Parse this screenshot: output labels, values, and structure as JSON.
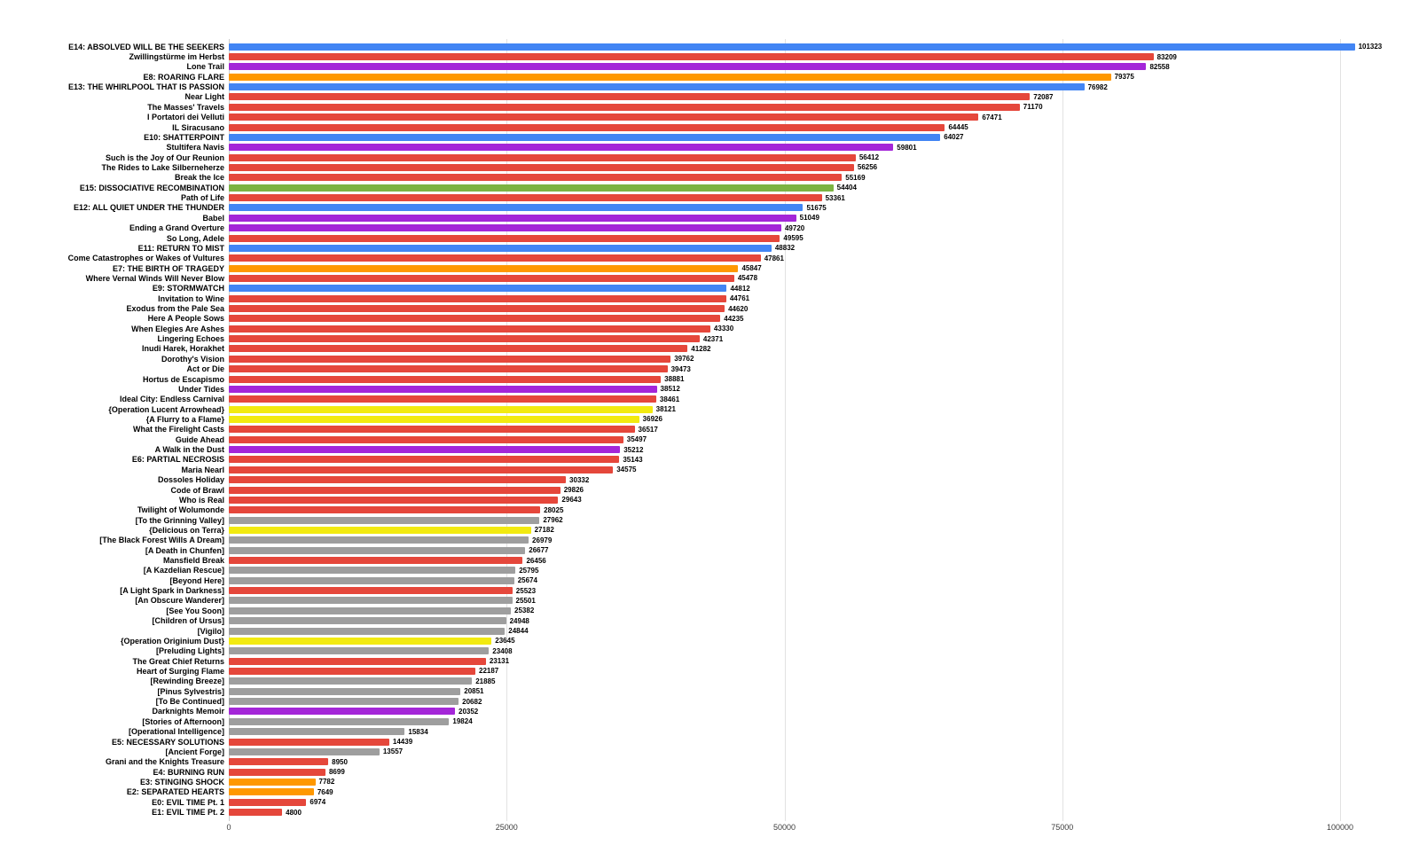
{
  "chart_data": {
    "type": "bar",
    "orientation": "horizontal",
    "title": "",
    "xlabel": "",
    "ylabel": "",
    "grid": true,
    "legend": "none",
    "x_axis": {
      "ticks": [
        0,
        25000,
        50000,
        75000,
        100000
      ],
      "max": 100000
    },
    "colors": {
      "blue": "#4285F4",
      "red": "#E5473B",
      "purple": "#A426D8",
      "orange": "#FF9800",
      "green": "#7CB342",
      "yellow": "#F2EA10",
      "gray": "#9E9E9E"
    },
    "bars": [
      {
        "label": "E14: ABSOLVED WILL BE THE SEEKERS",
        "value": 101323,
        "color": "blue"
      },
      {
        "label": "Zwillingstürme im Herbst",
        "value": 83209,
        "color": "red"
      },
      {
        "label": "Lone Trail",
        "value": 82558,
        "color": "purple"
      },
      {
        "label": "E8: ROARING FLARE",
        "value": 79375,
        "color": "orange"
      },
      {
        "label": "E13: THE WHIRLPOOL THAT IS PASSION",
        "value": 76982,
        "color": "blue"
      },
      {
        "label": "Near Light",
        "value": 72087,
        "color": "red"
      },
      {
        "label": "The Masses' Travels",
        "value": 71170,
        "color": "red"
      },
      {
        "label": "I Portatori dei Velluti",
        "value": 67471,
        "color": "red"
      },
      {
        "label": "IL Siracusano",
        "value": 64445,
        "color": "red"
      },
      {
        "label": "E10: SHATTERPOINT",
        "value": 64027,
        "color": "blue"
      },
      {
        "label": "Stultifera Navis",
        "value": 59801,
        "color": "purple"
      },
      {
        "label": "Such is the Joy of Our Reunion",
        "value": 56412,
        "color": "red"
      },
      {
        "label": "The Rides to Lake Silberneherze",
        "value": 56256,
        "color": "red"
      },
      {
        "label": "Break the Ice",
        "value": 55169,
        "color": "red"
      },
      {
        "label": "E15: DISSOCIATIVE RECOMBINATION",
        "value": 54404,
        "color": "green"
      },
      {
        "label": "Path of Life",
        "value": 53361,
        "color": "red"
      },
      {
        "label": "E12: ALL QUIET UNDER THE THUNDER",
        "value": 51675,
        "color": "blue"
      },
      {
        "label": "Babel",
        "value": 51049,
        "color": "purple"
      },
      {
        "label": "Ending a Grand Overture",
        "value": 49720,
        "color": "purple"
      },
      {
        "label": "So Long, Adele",
        "value": 49595,
        "color": "red"
      },
      {
        "label": "E11: RETURN TO MIST",
        "value": 48832,
        "color": "blue"
      },
      {
        "label": "Come Catastrophes or Wakes of Vultures",
        "value": 47861,
        "color": "red"
      },
      {
        "label": "E7: THE BIRTH OF TRAGEDY",
        "value": 45847,
        "color": "orange"
      },
      {
        "label": "Where Vernal Winds Will Never Blow",
        "value": 45478,
        "color": "red"
      },
      {
        "label": "E9: STORMWATCH",
        "value": 44812,
        "color": "blue"
      },
      {
        "label": "Invitation to Wine",
        "value": 44761,
        "color": "red"
      },
      {
        "label": "Exodus from the Pale Sea",
        "value": 44620,
        "color": "red"
      },
      {
        "label": "Here A People Sows",
        "value": 44235,
        "color": "red"
      },
      {
        "label": "When Elegies Are Ashes",
        "value": 43330,
        "color": "red"
      },
      {
        "label": "Lingering Echoes",
        "value": 42371,
        "color": "red"
      },
      {
        "label": "Inudi Harek, Horakhet",
        "value": 41282,
        "color": "red"
      },
      {
        "label": "Dorothy's Vision",
        "value": 39762,
        "color": "red"
      },
      {
        "label": "Act or Die",
        "value": 39473,
        "color": "red"
      },
      {
        "label": "Hortus de Escapismo",
        "value": 38881,
        "color": "red"
      },
      {
        "label": "Under Tides",
        "value": 38512,
        "color": "purple"
      },
      {
        "label": "Ideal City: Endless Carnival",
        "value": 38461,
        "color": "red"
      },
      {
        "label": "{Operation Lucent Arrowhead}",
        "value": 38121,
        "color": "yellow"
      },
      {
        "label": "{A Flurry to a Flame}",
        "value": 36926,
        "color": "yellow"
      },
      {
        "label": "What the Firelight Casts",
        "value": 36517,
        "color": "red"
      },
      {
        "label": "Guide Ahead",
        "value": 35497,
        "color": "red"
      },
      {
        "label": "A Walk in the Dust",
        "value": 35212,
        "color": "purple"
      },
      {
        "label": "E6: PARTIAL NECROSIS",
        "value": 35143,
        "color": "red"
      },
      {
        "label": "Maria Nearl",
        "value": 34575,
        "color": "red"
      },
      {
        "label": "Dossoles Holiday",
        "value": 30332,
        "color": "red"
      },
      {
        "label": "Code of Brawl",
        "value": 29826,
        "color": "red"
      },
      {
        "label": "Who is Real",
        "value": 29643,
        "color": "red"
      },
      {
        "label": "Twilight of Wolumonde",
        "value": 28025,
        "color": "red"
      },
      {
        "label": "[To the Grinning Valley]",
        "value": 27962,
        "color": "gray"
      },
      {
        "label": "{Delicious on Terra}",
        "value": 27182,
        "color": "yellow"
      },
      {
        "label": "[The Black Forest Wills A Dream]",
        "value": 26979,
        "color": "gray"
      },
      {
        "label": "[A Death in Chunfen]",
        "value": 26677,
        "color": "gray"
      },
      {
        "label": "Mansfield Break",
        "value": 26456,
        "color": "red"
      },
      {
        "label": "[A Kazdelian Rescue]",
        "value": 25795,
        "color": "gray"
      },
      {
        "label": "[Beyond Here]",
        "value": 25674,
        "color": "gray"
      },
      {
        "label": "[A Light Spark in Darkness]",
        "value": 25523,
        "color": "red"
      },
      {
        "label": "[An Obscure Wanderer]",
        "value": 25501,
        "color": "gray"
      },
      {
        "label": "[See You Soon]",
        "value": 25382,
        "color": "gray"
      },
      {
        "label": "[Children of Ursus]",
        "value": 24948,
        "color": "gray"
      },
      {
        "label": "[Vigilo]",
        "value": 24844,
        "color": "gray"
      },
      {
        "label": "{Operation Originium Dust}",
        "value": 23645,
        "color": "yellow"
      },
      {
        "label": "[Preluding Lights]",
        "value": 23408,
        "color": "gray"
      },
      {
        "label": "The Great Chief Returns",
        "value": 23131,
        "color": "red"
      },
      {
        "label": "Heart of Surging Flame",
        "value": 22187,
        "color": "red"
      },
      {
        "label": "[Rewinding Breeze]",
        "value": 21885,
        "color": "gray"
      },
      {
        "label": "[Pinus Sylvestris]",
        "value": 20851,
        "color": "gray"
      },
      {
        "label": "[To Be Continued]",
        "value": 20682,
        "color": "gray"
      },
      {
        "label": "Darknights Memoir",
        "value": 20352,
        "color": "purple"
      },
      {
        "label": "[Stories of Afternoon]",
        "value": 19824,
        "color": "gray"
      },
      {
        "label": "[Operational Intelligence]",
        "value": 15834,
        "color": "gray"
      },
      {
        "label": "E5: NECESSARY SOLUTIONS",
        "value": 14439,
        "color": "red"
      },
      {
        "label": "[Ancient Forge]",
        "value": 13557,
        "color": "gray"
      },
      {
        "label": "Grani and the Knights Treasure",
        "value": 8950,
        "color": "red"
      },
      {
        "label": "E4: BURNING RUN",
        "value": 8699,
        "color": "red"
      },
      {
        "label": "E3: STINGING SHOCK",
        "value": 7782,
        "color": "orange"
      },
      {
        "label": "E2: SEPARATED HEARTS",
        "value": 7649,
        "color": "orange"
      },
      {
        "label": "E0: EVIL TIME Pt. 1",
        "value": 6974,
        "color": "red"
      },
      {
        "label": "E1: EVIL TIME Pt. 2",
        "value": 4800,
        "color": "red"
      }
    ]
  }
}
